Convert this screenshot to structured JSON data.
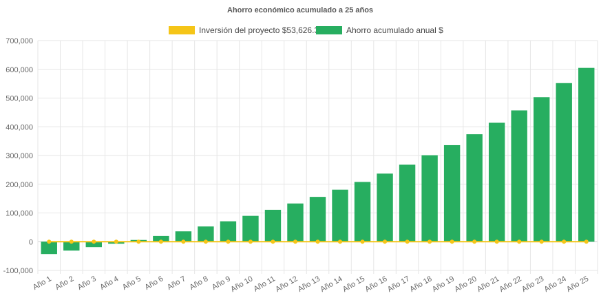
{
  "chart_data": {
    "type": "bar",
    "title": "Ahorro económico acumulado a 25 años",
    "categories": [
      "Año 1",
      "Año 2",
      "Año 3",
      "Año 4",
      "Año 5",
      "Año 6",
      "Año 7",
      "Año 8",
      "Año 9",
      "Año 10",
      "Año 11",
      "Año 12",
      "Año 13",
      "Año 14",
      "Año 15",
      "Año 16",
      "Año 17",
      "Año 18",
      "Año 19",
      "Año 20",
      "Año 21",
      "Año 22",
      "Año 23",
      "Año 24",
      "Año 25"
    ],
    "y_ticks": [
      "700,000",
      "600,000",
      "500,000",
      "400,000",
      "300,000",
      "200,000",
      "100,000",
      "0",
      "-100,000"
    ],
    "ylim": [
      -100000,
      700000
    ],
    "grid": true,
    "legend_position": "top",
    "series": [
      {
        "name": "Inversión del proyecto $53,626.30",
        "type": "line",
        "color": "#f5c518",
        "values": [
          0,
          0,
          0,
          0,
          0,
          0,
          0,
          0,
          0,
          0,
          0,
          0,
          0,
          0,
          0,
          0,
          0,
          0,
          0,
          0,
          0,
          0,
          0,
          0,
          0
        ]
      },
      {
        "name": "Ahorro acumulado anual $",
        "type": "bar",
        "color": "#27ae60",
        "values": [
          -43000,
          -31000,
          -19000,
          -7000,
          6000,
          20000,
          36000,
          53000,
          71000,
          90000,
          111000,
          133000,
          156000,
          181000,
          208000,
          237000,
          268000,
          301000,
          336000,
          374000,
          414000,
          457000,
          503000,
          552000,
          605000
        ]
      }
    ]
  }
}
